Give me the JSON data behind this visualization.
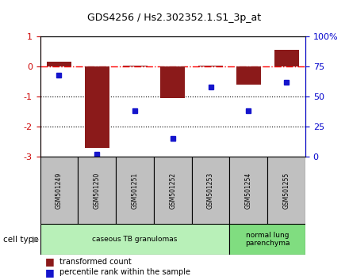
{
  "title": "GDS4256 / Hs2.302352.1.S1_3p_at",
  "samples": [
    "GSM501249",
    "GSM501250",
    "GSM501251",
    "GSM501252",
    "GSM501253",
    "GSM501254",
    "GSM501255"
  ],
  "transformed_count": [
    0.15,
    -2.7,
    0.02,
    -1.05,
    0.02,
    -0.6,
    0.55
  ],
  "percentile_rank": [
    68,
    2,
    38,
    15,
    58,
    38,
    62
  ],
  "ylim_left": [
    -3.0,
    1.0
  ],
  "ylim_right": [
    0,
    100
  ],
  "yticks_left": [
    -3,
    -2,
    -1,
    0,
    1
  ],
  "ytick_labels_left": [
    "-3",
    "-2",
    "-1",
    "0",
    "1"
  ],
  "yticks_right": [
    0,
    25,
    50,
    75,
    100
  ],
  "ytick_labels_right": [
    "0",
    "25",
    "50",
    "75",
    "100%"
  ],
  "hline_y": 0,
  "dotted_lines": [
    -1,
    -2
  ],
  "bar_color": "#8B1A1A",
  "dot_color": "#1515cc",
  "sample_box_color": "#c0c0c0",
  "cell_types": [
    {
      "label": "caseous TB granulomas",
      "samples_idx": [
        0,
        4
      ],
      "color": "#b8f0b8"
    },
    {
      "label": "normal lung\nparenchyma",
      "samples_idx": [
        5,
        6
      ],
      "color": "#80dd80"
    }
  ],
  "cell_type_label": "cell type",
  "legend_bar_label": "transformed count",
  "legend_dot_label": "percentile rank within the sample",
  "axis_color_left": "#cc0000",
  "axis_color_right": "#0000cc"
}
